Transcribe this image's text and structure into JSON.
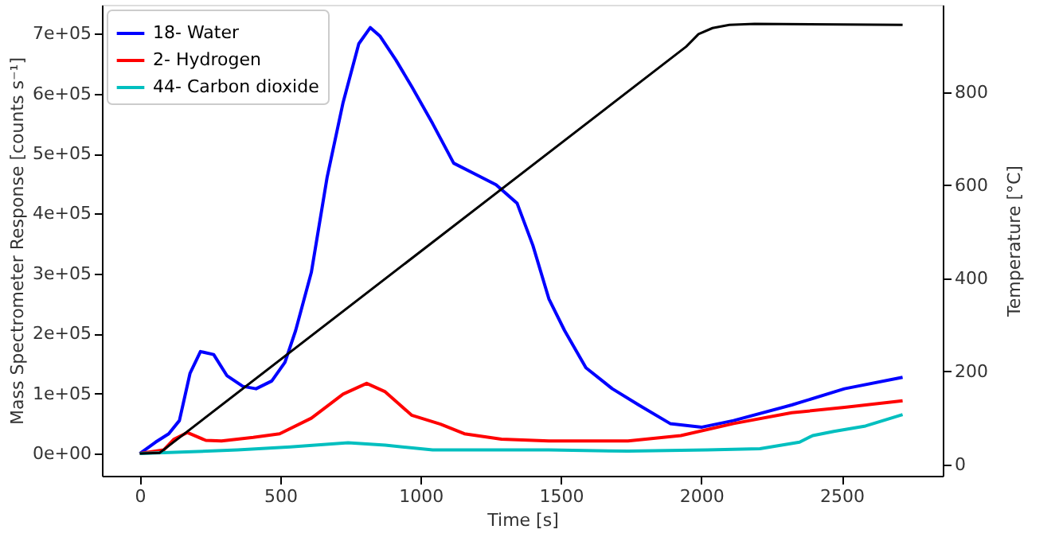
{
  "chart_data": {
    "type": "line",
    "xlabel": "Time [s]",
    "ylabel": "Mass Spectrometer Response [counts s⁻¹]",
    "y2label": "Temperature [°C]",
    "xlim": [
      -135,
      2860
    ],
    "xticks": [
      0,
      500,
      1000,
      1500,
      2000,
      2500
    ],
    "ylim": [
      -37000,
      748000
    ],
    "yticks": [
      {
        "value": 0,
        "label": "0e+00"
      },
      {
        "value": 100000,
        "label": "1e+05"
      },
      {
        "value": 200000,
        "label": "2e+05"
      },
      {
        "value": 300000,
        "label": "3e+05"
      },
      {
        "value": 400000,
        "label": "4e+05"
      },
      {
        "value": 500000,
        "label": "5e+05"
      },
      {
        "value": 600000,
        "label": "6e+05"
      },
      {
        "value": 700000,
        "label": "7e+05"
      }
    ],
    "y2lim": [
      -24,
      988
    ],
    "y2ticks": [
      0,
      200,
      400,
      600,
      800
    ],
    "grid": false,
    "legend": "top left",
    "marker": "none",
    "line_style": "solid",
    "series": [
      {
        "name": "18- Water",
        "color": "#0000ff",
        "x": [
          0,
          56,
          103,
          141,
          179,
          216,
          263,
          310,
          367,
          414,
          470,
          517,
          555,
          611,
          667,
          724,
          780,
          821,
          855,
          912,
          968,
          1043,
          1118,
          1194,
          1269,
          1344,
          1400,
          1457,
          1513,
          1589,
          1683,
          1777,
          1889,
          2002,
          2115,
          2322,
          2510,
          2717
        ],
        "values": [
          0,
          19000,
          33000,
          55000,
          134000,
          170000,
          165000,
          130000,
          112000,
          108000,
          121000,
          152000,
          205000,
          302000,
          460000,
          585000,
          683000,
          710000,
          696000,
          656000,
          612000,
          550000,
          484000,
          466000,
          448000,
          417000,
          347000,
          258000,
          205000,
          143000,
          108000,
          81000,
          50000,
          44000,
          55000,
          81000,
          108000,
          127000
        ]
      },
      {
        "name": "2- Hydrogen",
        "color": "#ff0000",
        "x": [
          0,
          85,
          122,
          169,
          235,
          291,
          404,
          498,
          611,
          724,
          808,
          874,
          968,
          1071,
          1156,
          1288,
          1457,
          1739,
          1927,
          2115,
          2322,
          2510,
          2717
        ],
        "values": [
          0,
          6000,
          24000,
          35000,
          22000,
          21000,
          27000,
          33000,
          59000,
          99000,
          117000,
          103000,
          64000,
          49000,
          33000,
          24000,
          21000,
          21000,
          30000,
          50000,
          68000,
          77000,
          88000
        ]
      },
      {
        "name": "44- Carbon dioxide",
        "color": "#00bfbf",
        "x": [
          0,
          348,
          536,
          742,
          874,
          1043,
          1288,
          1457,
          1739,
          2021,
          2209,
          2350,
          2397,
          2472,
          2585,
          2717
        ],
        "values": [
          0,
          6000,
          11000,
          18000,
          14000,
          6000,
          6000,
          6000,
          4000,
          6000,
          8000,
          19000,
          30000,
          37000,
          46000,
          65000
        ]
      },
      {
        "color": "#000000",
        "axis": "y2",
        "x": [
          0,
          70,
          1946,
          1990,
          2040,
          2100,
          2190,
          2717
        ],
        "values": [
          24,
          25,
          898,
          925,
          938,
          945,
          947,
          945
        ]
      }
    ]
  }
}
